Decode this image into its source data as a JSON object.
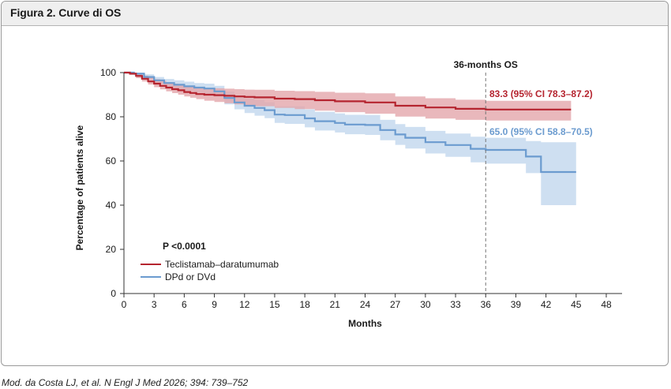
{
  "figure": {
    "title": "Figura 2. Curve di OS",
    "caption": "Mod. da Costa LJ, et al. N Engl J Med 2026; 394: 739–752"
  },
  "chart_data": {
    "type": "line",
    "subtype": "kaplan-meier",
    "xlabel": "Months",
    "ylabel": "Percentage of patients alive",
    "xlim": [
      0,
      48
    ],
    "ylim": [
      0,
      100
    ],
    "xticks": [
      0,
      3,
      6,
      9,
      12,
      15,
      18,
      21,
      24,
      27,
      30,
      33,
      36,
      39,
      42,
      45,
      48
    ],
    "yticks": [
      0,
      20,
      40,
      60,
      80,
      100
    ],
    "pvalue_text": "P <0.0001",
    "reference_line": {
      "x": 36,
      "label": "36-months OS"
    },
    "legend": {
      "position": "lower-left"
    },
    "series": [
      {
        "name": "Teclistamab–daratumumab",
        "color": "#b5242f",
        "band_color": "#e3a6ab",
        "annotation": "83.3 (95% CI 78.3–87.2)",
        "x": [
          0,
          0.6,
          1.2,
          1.8,
          2.4,
          3,
          3.6,
          4.2,
          4.8,
          5.4,
          6,
          6.6,
          7.2,
          8,
          9,
          10,
          11,
          12,
          13,
          15,
          17,
          19,
          21,
          24,
          27,
          30,
          33,
          36,
          39,
          41,
          43,
          44.5
        ],
        "y": [
          100,
          99.5,
          98.5,
          97.2,
          96,
          95,
          94,
          93.2,
          92.5,
          92,
          91.2,
          90.8,
          90.3,
          90,
          89.8,
          89.5,
          89.2,
          89,
          88.8,
          88.2,
          88,
          87.5,
          87,
          86.5,
          85,
          84.2,
          83.6,
          83.3,
          83.3,
          83.3,
          83.3,
          83.3
        ],
        "ci_low": [
          100,
          99,
          97.5,
          96,
          94.6,
          93.4,
          92.4,
          91.5,
          90.7,
          90,
          89.2,
          88.6,
          88,
          87.3,
          86.7,
          86.1,
          85.6,
          85.2,
          84.8,
          84,
          83.5,
          82.8,
          82.1,
          81.4,
          80.1,
          79.2,
          78.6,
          78.3,
          78.3,
          78.3,
          78.3,
          78.3
        ],
        "ci_high": [
          100,
          100,
          99.4,
          98.6,
          97.8,
          97,
          96.3,
          95.6,
          95,
          94.6,
          94,
          93.7,
          93.3,
          93,
          92.9,
          92.7,
          92.5,
          92.3,
          92.2,
          91.8,
          91.6,
          91.3,
          90.9,
          90.6,
          89.2,
          88.4,
          87.7,
          87.2,
          87.2,
          87.2,
          87.2,
          87.2
        ]
      },
      {
        "name": "DPd or DVd",
        "color": "#6b9bcf",
        "band_color": "#c9dcef",
        "annotation": "65.0 (95% CI 58.8–70.5)",
        "x": [
          0,
          1,
          2,
          3,
          4,
          5,
          6,
          7,
          8,
          9,
          10,
          11,
          12,
          13,
          14,
          15,
          16,
          18,
          19,
          21,
          22,
          24,
          25.5,
          27,
          28,
          30,
          32,
          34.5,
          36,
          40,
          41.5,
          45
        ],
        "y": [
          100,
          99.5,
          98,
          96.5,
          95.3,
          94.5,
          93.8,
          93.2,
          92.8,
          91.5,
          88.5,
          86.5,
          85,
          84,
          83,
          81,
          80.8,
          79.3,
          78,
          77.2,
          76.5,
          76.3,
          74,
          72,
          70.5,
          68.5,
          67.2,
          65.5,
          65,
          62,
          55,
          55
        ],
        "ci_low": [
          100,
          98.8,
          97,
          95,
          93.5,
          92.5,
          91.7,
          91,
          90.5,
          89,
          85.6,
          83.4,
          81.7,
          80.5,
          79.4,
          77.2,
          76.8,
          75.2,
          73.8,
          72.9,
          72.1,
          71.8,
          69.4,
          67.3,
          65.6,
          63.4,
          61.9,
          59.4,
          58.8,
          54.5,
          40,
          40
        ],
        "ci_high": [
          100,
          100,
          99.2,
          98,
          97.1,
          96.5,
          95.9,
          95.3,
          95,
          94,
          91.4,
          89.7,
          88.3,
          87.5,
          86.6,
          84.8,
          84.7,
          83.4,
          82.2,
          81.5,
          80.9,
          80.8,
          78.6,
          76.7,
          75.4,
          73.6,
          72.4,
          71,
          70.5,
          69,
          68.5,
          68.5
        ]
      }
    ]
  }
}
